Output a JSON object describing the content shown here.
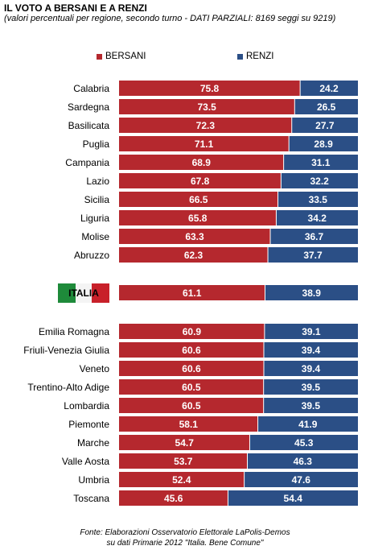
{
  "chart_data": {
    "type": "bar",
    "orientation": "horizontal",
    "stacked": true,
    "title": "IL VOTO A BERSANI E A RENZI",
    "subtitle": "(valori percentuali per regione, secondo turno - DATI PARZIALI: 8169 seggi su 9219)",
    "legend_position": "top",
    "categories": [
      "Calabria",
      "Sardegna",
      "Basilicata",
      "Puglia",
      "Campania",
      "Lazio",
      "Sicilia",
      "Liguria",
      "Molise",
      "Abruzzo",
      "ITALIA",
      "Emilia Romagna",
      "Friuli-Venezia Giulia",
      "Veneto",
      "Trentino-Alto Adige",
      "Lombardia",
      "Piemonte",
      "Marche",
      "Valle Aosta",
      "Umbria",
      "Toscana"
    ],
    "series": [
      {
        "name": "BERSANI",
        "color": "#b5282e",
        "values": [
          75.8,
          73.5,
          72.3,
          71.1,
          68.9,
          67.8,
          66.5,
          65.8,
          63.3,
          62.3,
          61.1,
          60.9,
          60.6,
          60.6,
          60.5,
          60.5,
          58.1,
          54.7,
          53.7,
          52.4,
          45.6
        ]
      },
      {
        "name": "RENZI",
        "color": "#2b4f86",
        "values": [
          24.2,
          26.5,
          27.7,
          28.9,
          31.1,
          32.2,
          33.5,
          34.2,
          36.7,
          37.7,
          38.9,
          39.1,
          39.4,
          39.4,
          39.5,
          39.5,
          41.9,
          45.3,
          46.3,
          47.6,
          54.4
        ]
      }
    ],
    "xlim": [
      0,
      100
    ],
    "grid": false
  },
  "source": {
    "line1": "Fonte: Elaborazioni Osservatorio Elettorale LaPolis-Demos",
    "line2": "su dati Primarie 2012 \"Italia. Bene Comune\""
  }
}
